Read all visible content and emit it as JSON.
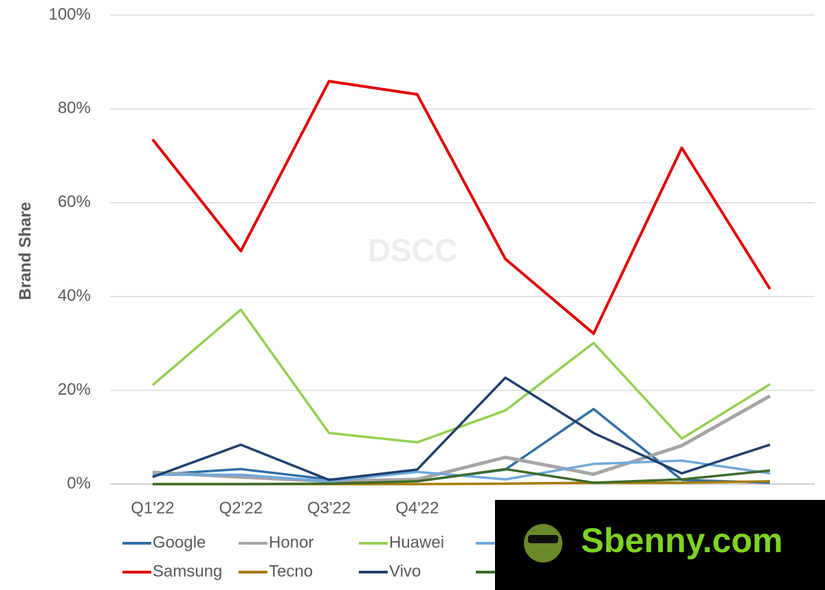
{
  "chart_data": {
    "type": "line",
    "ylabel": "Brand Share",
    "watermark": "DSCC",
    "categories": [
      "Q1'22",
      "Q2'22",
      "Q3'22",
      "Q4'22",
      null,
      null,
      null,
      null
    ],
    "ylim": [
      0,
      100
    ],
    "yticks": [
      {
        "value": 0,
        "label": "0%"
      },
      {
        "value": 20,
        "label": "20%"
      },
      {
        "value": 40,
        "label": "40%"
      },
      {
        "value": 60,
        "label": "60%"
      },
      {
        "value": 80,
        "label": "80%"
      },
      {
        "value": 100,
        "label": "100%"
      }
    ],
    "grid": true,
    "series": [
      {
        "name": "Google",
        "color": "#2f6fa7",
        "values": [
          2.0,
          3.2,
          1.0,
          0.6,
          3.1,
          16.0,
          0.9,
          0.3
        ]
      },
      {
        "name": "Honor",
        "color": "#a5a5a5",
        "values": [
          2.5,
          1.5,
          0.6,
          1.0,
          5.7,
          2.1,
          8.2,
          18.8
        ]
      },
      {
        "name": "Huawei",
        "color": "#92d050",
        "values": [
          21.1,
          37.2,
          10.9,
          8.9,
          15.7,
          30.1,
          9.7,
          21.3
        ]
      },
      {
        "name": null,
        "color": "#6fa8dc",
        "values": [
          2.0,
          2.0,
          0.6,
          2.6,
          1.0,
          4.3,
          5.0,
          2.3
        ]
      },
      {
        "name": "Samsung",
        "color": "#e00000",
        "values": [
          73.5,
          49.7,
          85.9,
          83.1,
          48.0,
          32.1,
          71.7,
          41.6
        ]
      },
      {
        "name": "Tecno",
        "color": "#a67c00",
        "values": [
          0,
          0,
          0,
          0,
          0.1,
          0.3,
          0.3,
          0.6
        ]
      },
      {
        "name": "Vivo",
        "color": "#1f3f6e",
        "values": [
          1.5,
          8.4,
          0.9,
          3.1,
          22.7,
          10.9,
          2.3,
          8.4
        ]
      },
      {
        "name": null,
        "color": "#3d6b2a",
        "values": [
          0,
          0,
          0.1,
          0.6,
          3.2,
          0.3,
          1.0,
          2.9
        ]
      }
    ]
  },
  "overlay": {
    "text": "Sbenny.com"
  }
}
